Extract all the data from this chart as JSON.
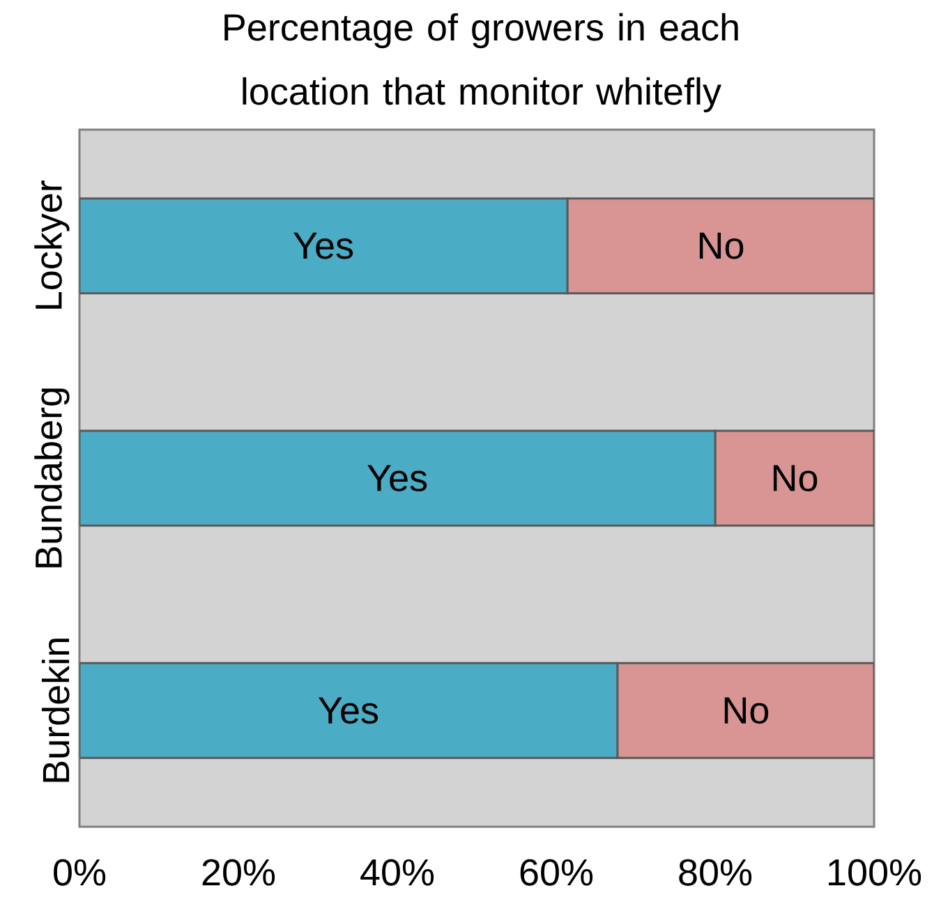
{
  "chart_data": {
    "type": "bar",
    "title": "Percentage of growers in each location that monitor whitefly",
    "orientation": "horizontal",
    "stacked": true,
    "categories": [
      "Lockyer",
      "Bundaberg",
      "Burdekin"
    ],
    "series": [
      {
        "name": "Yes",
        "color": "#4bacc6",
        "values": [
          61.4,
          80,
          67.7
        ]
      },
      {
        "name": "No",
        "color": "#d99594",
        "values": [
          38.6,
          20,
          32.3
        ]
      }
    ],
    "xlim": [
      0,
      100
    ],
    "xticks": [
      {
        "value": 0,
        "label": "0%"
      },
      {
        "value": 20,
        "label": "20%"
      },
      {
        "value": 40,
        "label": "40%"
      },
      {
        "value": 60,
        "label": "60%"
      },
      {
        "value": 80,
        "label": "80%"
      },
      {
        "value": 100,
        "label": "100%"
      }
    ]
  }
}
